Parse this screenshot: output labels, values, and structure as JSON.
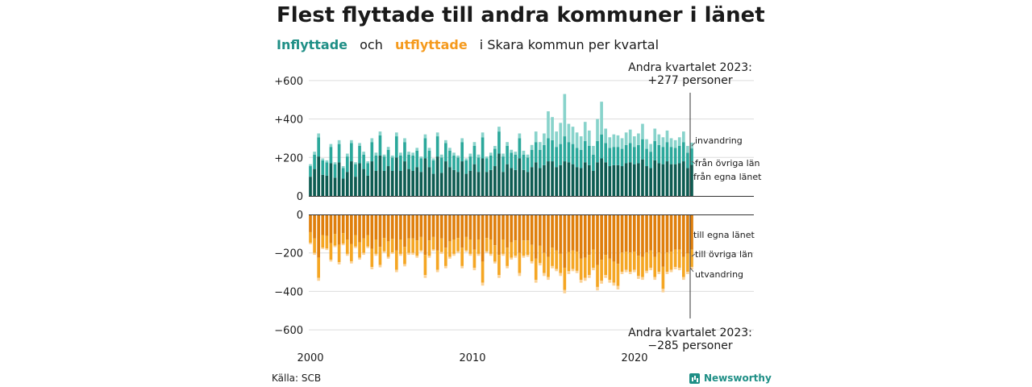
{
  "header": {
    "title": "Flest flyttade till andra kommuner i länet",
    "subtitle_in": "Inflyttade",
    "subtitle_och": "och",
    "subtitle_out": "utflyttade",
    "subtitle_rest": "i Skara  kommun  per  kvartal"
  },
  "footer": {
    "source": "Källa: SCB",
    "brand": "Newsworthy"
  },
  "colors": {
    "in_own_county": "#0e5c52",
    "in_other_counties": "#2ba89b",
    "in_immigration": "#88d3cb",
    "out_own_county": "#df7f0c",
    "out_other_counties": "#f5a623",
    "out_emigration": "#fbd296",
    "grid": "#dddddd",
    "text": "#1a1a1a",
    "teal": "#1f8f86",
    "orange": "#f59a1d"
  },
  "chart_data": {
    "type": "bar",
    "stacked": true,
    "x_ticks": [
      "2000",
      "2010",
      "2020"
    ],
    "y_ticks_top": [
      "+600",
      "+400",
      "+200",
      "0"
    ],
    "y_ticks_bottom": [
      "0",
      "−200",
      "−400",
      "−600"
    ],
    "top_range": [
      0,
      600
    ],
    "bottom_range": [
      -600,
      0
    ],
    "series_labels": {
      "invandring": "invandring",
      "fran_ovriga_lan": "från övriga län",
      "fran_egna_lanet": "från egna länet",
      "till_egna_lanet": "till egna länet",
      "till_ovriga_lan": "till övriga län",
      "utvandring": "utvandring"
    },
    "annotation_top": {
      "line1": "Andra kvartalet 2023:",
      "line2": "+277 personer"
    },
    "annotation_bottom": {
      "line1": "Andra kvartalet 2023:",
      "line2": "−285 personer"
    },
    "first_period": "2000 Q1",
    "last_period": "2023 Q2",
    "inflow_total": [
      165,
      230,
      325,
      195,
      185,
      270,
      175,
      290,
      155,
      220,
      290,
      175,
      275,
      230,
      180,
      300,
      225,
      335,
      215,
      255,
      210,
      330,
      225,
      300,
      230,
      225,
      250,
      205,
      320,
      250,
      195,
      330,
      215,
      290,
      250,
      225,
      210,
      300,
      195,
      220,
      280,
      215,
      330,
      205,
      225,
      260,
      360,
      220,
      280,
      240,
      230,
      325,
      235,
      215,
      265,
      335,
      280,
      325,
      440,
      410,
      335,
      380,
      530,
      375,
      360,
      330,
      310,
      385,
      340,
      260,
      400,
      490,
      350,
      305,
      320,
      315,
      300,
      330,
      345,
      310,
      325,
      375,
      295,
      270,
      350,
      320,
      305,
      340,
      300,
      290,
      305,
      335,
      260,
      277
    ],
    "inflow_other_counties": [
      55,
      75,
      100,
      75,
      70,
      85,
      70,
      95,
      55,
      80,
      95,
      65,
      90,
      75,
      65,
      100,
      80,
      105,
      75,
      85,
      70,
      110,
      80,
      100,
      75,
      80,
      85,
      70,
      105,
      85,
      70,
      105,
      80,
      95,
      85,
      75,
      75,
      100,
      70,
      75,
      95,
      75,
      110,
      70,
      75,
      90,
      115,
      80,
      95,
      80,
      80,
      105,
      80,
      75,
      90,
      105,
      95,
      105,
      120,
      110,
      105,
      110,
      130,
      105,
      105,
      100,
      95,
      110,
      100,
      85,
      110,
      125,
      100,
      95,
      95,
      95,
      90,
      95,
      100,
      90,
      95,
      105,
      90,
      85,
      100,
      95,
      90,
      100,
      90,
      85,
      90,
      100,
      80,
      85
    ],
    "inflow_immigration": [
      10,
      15,
      20,
      10,
      10,
      15,
      10,
      20,
      10,
      15,
      15,
      10,
      15,
      15,
      10,
      20,
      15,
      20,
      10,
      15,
      10,
      20,
      15,
      20,
      15,
      15,
      15,
      10,
      20,
      15,
      10,
      20,
      15,
      15,
      15,
      15,
      10,
      20,
      10,
      15,
      20,
      15,
      25,
      10,
      15,
      15,
      25,
      15,
      20,
      15,
      15,
      25,
      20,
      15,
      25,
      55,
      40,
      60,
      140,
      120,
      80,
      110,
      220,
      95,
      90,
      80,
      70,
      100,
      80,
      45,
      115,
      170,
      75,
      55,
      65,
      60,
      55,
      65,
      70,
      55,
      60,
      80,
      50,
      40,
      65,
      55,
      50,
      60,
      45,
      40,
      45,
      55,
      35,
      30
    ],
    "outflow_total": [
      -155,
      -210,
      -345,
      -180,
      -185,
      -245,
      -170,
      -260,
      -160,
      -215,
      -255,
      -175,
      -235,
      -210,
      -175,
      -285,
      -215,
      -275,
      -200,
      -230,
      -205,
      -300,
      -215,
      -270,
      -210,
      -210,
      -225,
      -195,
      -330,
      -225,
      -190,
      -300,
      -205,
      -280,
      -230,
      -215,
      -200,
      -280,
      -195,
      -215,
      -290,
      -215,
      -370,
      -200,
      -215,
      -255,
      -330,
      -215,
      -280,
      -235,
      -225,
      -320,
      -225,
      -220,
      -255,
      -355,
      -265,
      -320,
      -340,
      -280,
      -295,
      -320,
      -410,
      -310,
      -295,
      -305,
      -355,
      -345,
      -330,
      -290,
      -395,
      -360,
      -330,
      -355,
      -370,
      -390,
      -310,
      -300,
      -310,
      -300,
      -335,
      -340,
      -305,
      -290,
      -340,
      -310,
      -405,
      -310,
      -300,
      -285,
      -290,
      -340,
      -310,
      -285
    ],
    "outflow_other_counties": [
      -55,
      -75,
      -105,
      -65,
      -65,
      -85,
      -60,
      -90,
      -55,
      -75,
      -90,
      -60,
      -80,
      -75,
      -60,
      -95,
      -75,
      -95,
      -70,
      -80,
      -70,
      -100,
      -75,
      -90,
      -75,
      -75,
      -80,
      -70,
      -105,
      -80,
      -65,
      -100,
      -70,
      -95,
      -80,
      -75,
      -70,
      -95,
      -70,
      -75,
      -95,
      -75,
      -110,
      -70,
      -75,
      -85,
      -105,
      -75,
      -95,
      -80,
      -80,
      -105,
      -80,
      -75,
      -85,
      -110,
      -90,
      -105,
      -105,
      -95,
      -95,
      -100,
      -115,
      -100,
      -95,
      -100,
      -110,
      -105,
      -105,
      -95,
      -115,
      -110,
      -105,
      -110,
      -110,
      -115,
      -100,
      -95,
      -100,
      -95,
      -105,
      -105,
      -95,
      -90,
      -105,
      -100,
      -115,
      -100,
      -95,
      -90,
      -95,
      -105,
      -95,
      -90
    ],
    "outflow_emigration": [
      -8,
      -10,
      -15,
      -8,
      -8,
      -10,
      -8,
      -12,
      -8,
      -10,
      -12,
      -8,
      -10,
      -10,
      -8,
      -12,
      -10,
      -12,
      -8,
      -10,
      -8,
      -12,
      -10,
      -12,
      -10,
      -10,
      -10,
      -8,
      -15,
      -10,
      -8,
      -12,
      -10,
      -12,
      -10,
      -10,
      -8,
      -12,
      -8,
      -10,
      -12,
      -10,
      -15,
      -8,
      -10,
      -10,
      -15,
      -10,
      -12,
      -10,
      -10,
      -15,
      -10,
      -10,
      -12,
      -15,
      -12,
      -15,
      -15,
      -12,
      -12,
      -15,
      -18,
      -15,
      -12,
      -12,
      -15,
      -15,
      -15,
      -12,
      -18,
      -15,
      -15,
      -15,
      -15,
      -18,
      -12,
      -12,
      -12,
      -12,
      -15,
      -15,
      -12,
      -12,
      -15,
      -12,
      -18,
      -12,
      -12,
      -12,
      -12,
      -15,
      -12,
      -12
    ]
  }
}
